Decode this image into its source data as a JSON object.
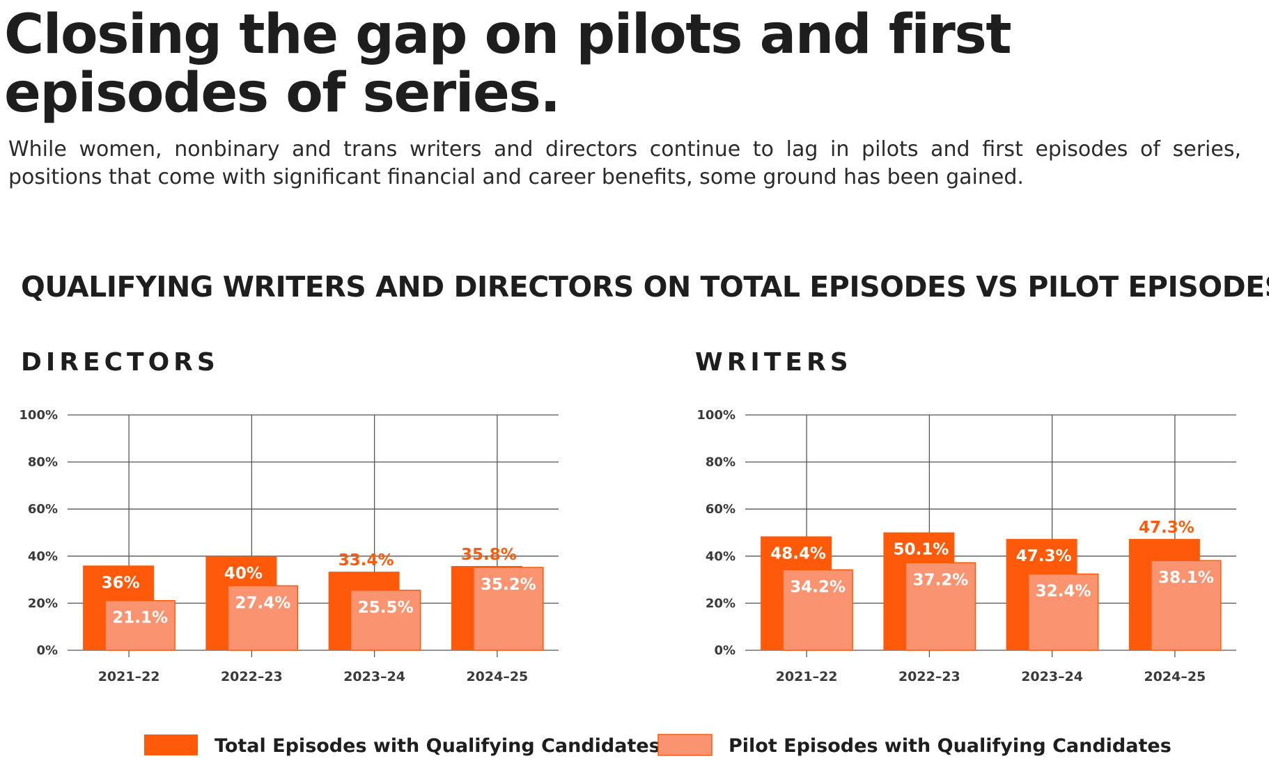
{
  "headline": "Closing the gap on pilots and first episodes of series.",
  "intro": "While women, nonbinary and trans writers and directors continue to lag in pilots and first episodes of series, positions that come with significant financial and career benefits, some ground has been gained.",
  "chart_title": "QUALIFYING WRITERS AND DIRECTORS ON TOTAL EPISODES VS PILOT EPISODES",
  "colors": {
    "total": "#ff5a0a",
    "pilot": "#f99370",
    "pilot_border": "#ff5a0a",
    "highlight_label": "#ff5a0a"
  },
  "legend": [
    {
      "label": "Total Episodes with Qualifying Candidates",
      "color": "#ff5a0a"
    },
    {
      "label": "Pilot Episodes with Qualifying Candidates",
      "color": "#f99370"
    }
  ],
  "chart_data": [
    {
      "type": "bar",
      "title": "DIRECTORS",
      "categories": [
        "2021–22",
        "2022–23",
        "2023–24",
        "2024–25"
      ],
      "ylim": [
        0,
        100
      ],
      "yticks": [
        "0%",
        "20%",
        "40%",
        "60%",
        "80%",
        "100%"
      ],
      "grid": true,
      "legend_position": "bottom",
      "series": [
        {
          "name": "Total Episodes with Qualifying Candidates",
          "values": [
            36,
            40,
            33.4,
            35.8
          ],
          "labels": [
            "36%",
            "40%",
            "33.4%",
            "35.8%"
          ]
        },
        {
          "name": "Pilot Episodes with Qualifying Candidates",
          "values": [
            21.1,
            27.4,
            25.5,
            35.2
          ],
          "labels": [
            "21.1%",
            "27.4%",
            "25.5%",
            "35.2%"
          ]
        }
      ]
    },
    {
      "type": "bar",
      "title": "WRITERS",
      "categories": [
        "2021–22",
        "2022–23",
        "2023–24",
        "2024–25"
      ],
      "ylim": [
        0,
        100
      ],
      "yticks": [
        "0%",
        "20%",
        "40%",
        "60%",
        "80%",
        "100%"
      ],
      "grid": true,
      "legend_position": "bottom",
      "series": [
        {
          "name": "Total Episodes with Qualifying Candidates",
          "values": [
            48.4,
            50.1,
            47.3,
            47.3
          ],
          "labels": [
            "48.4%",
            "50.1%",
            "47.3%",
            "47.3%"
          ]
        },
        {
          "name": "Pilot Episodes with Qualifying Candidates",
          "values": [
            34.2,
            37.2,
            32.4,
            38.1
          ],
          "labels": [
            "34.2%",
            "37.2%",
            "32.4%",
            "38.1%"
          ]
        }
      ]
    }
  ]
}
